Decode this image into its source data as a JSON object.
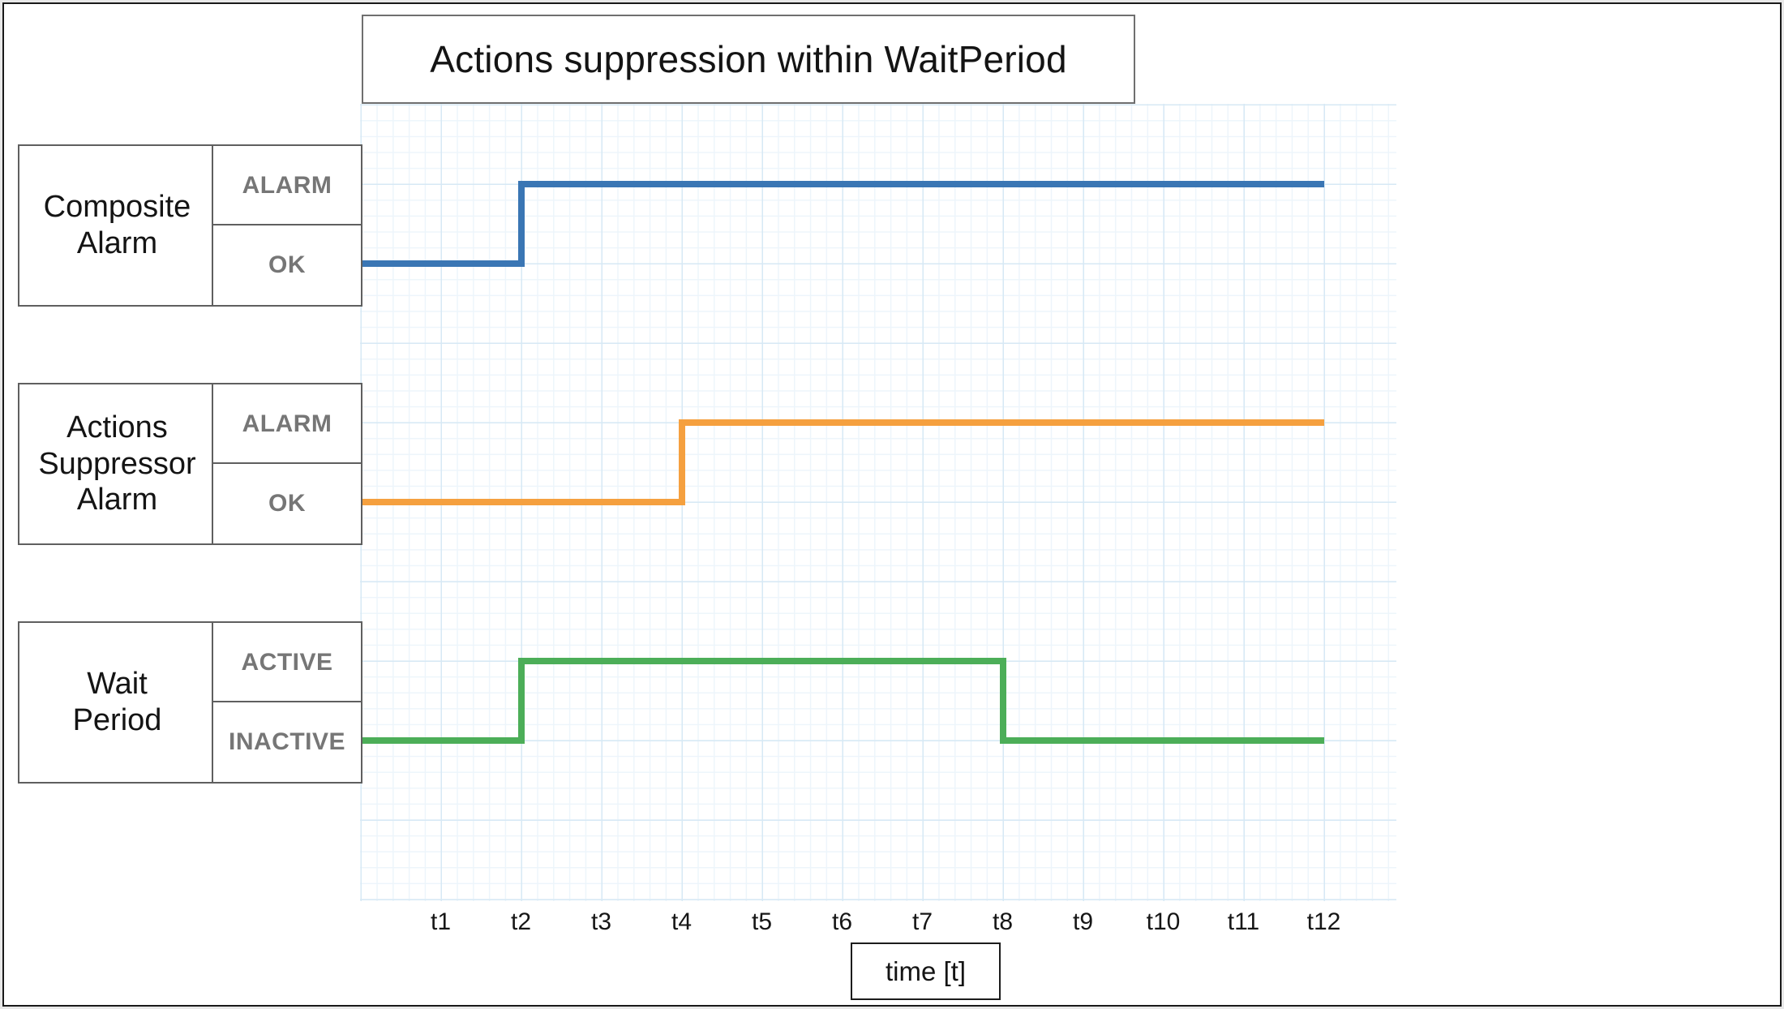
{
  "title": "Actions suppression within WaitPeriod",
  "x_axis": {
    "label": "time [t]",
    "ticks": [
      "t1",
      "t2",
      "t3",
      "t4",
      "t5",
      "t6",
      "t7",
      "t8",
      "t9",
      "t10",
      "t11",
      "t12"
    ]
  },
  "lanes": [
    {
      "name": "Composite Alarm",
      "label": "Composite\nAlarm",
      "high": "ALARM",
      "low": "OK",
      "color": "#3a76b4"
    },
    {
      "name": "Actions Suppressor Alarm",
      "label": "Actions\nSuppressor\nAlarm",
      "high": "ALARM",
      "low": "OK",
      "color": "#f5a03f"
    },
    {
      "name": "Wait Period",
      "label": "Wait\nPeriod",
      "high": "ACTIVE",
      "low": "INACTIVE",
      "color": "#4cae58"
    }
  ],
  "chart_data": {
    "type": "line",
    "subtype": "step-timing-diagram",
    "title": "Actions suppression within WaitPeriod",
    "xlabel": "time [t]",
    "x_ticks": [
      "t1",
      "t2",
      "t3",
      "t4",
      "t5",
      "t6",
      "t7",
      "t8",
      "t9",
      "t10",
      "t11",
      "t12"
    ],
    "x_range": [
      0,
      12
    ],
    "grid": true,
    "legend_position": "left-lane-labels",
    "series": [
      {
        "name": "Composite Alarm",
        "color": "#3a76b4",
        "levels": [
          "ALARM",
          "OK"
        ],
        "steps": [
          {
            "t": 0,
            "state": "OK"
          },
          {
            "t": 2,
            "state": "ALARM"
          }
        ],
        "end_t": 12
      },
      {
        "name": "Actions Suppressor Alarm",
        "color": "#f5a03f",
        "levels": [
          "ALARM",
          "OK"
        ],
        "steps": [
          {
            "t": 0,
            "state": "OK"
          },
          {
            "t": 4,
            "state": "ALARM"
          }
        ],
        "end_t": 12
      },
      {
        "name": "Wait Period",
        "color": "#4cae58",
        "levels": [
          "ACTIVE",
          "INACTIVE"
        ],
        "steps": [
          {
            "t": 0,
            "state": "INACTIVE"
          },
          {
            "t": 2,
            "state": "ACTIVE"
          },
          {
            "t": 8,
            "state": "INACTIVE"
          }
        ],
        "end_t": 12
      }
    ]
  }
}
